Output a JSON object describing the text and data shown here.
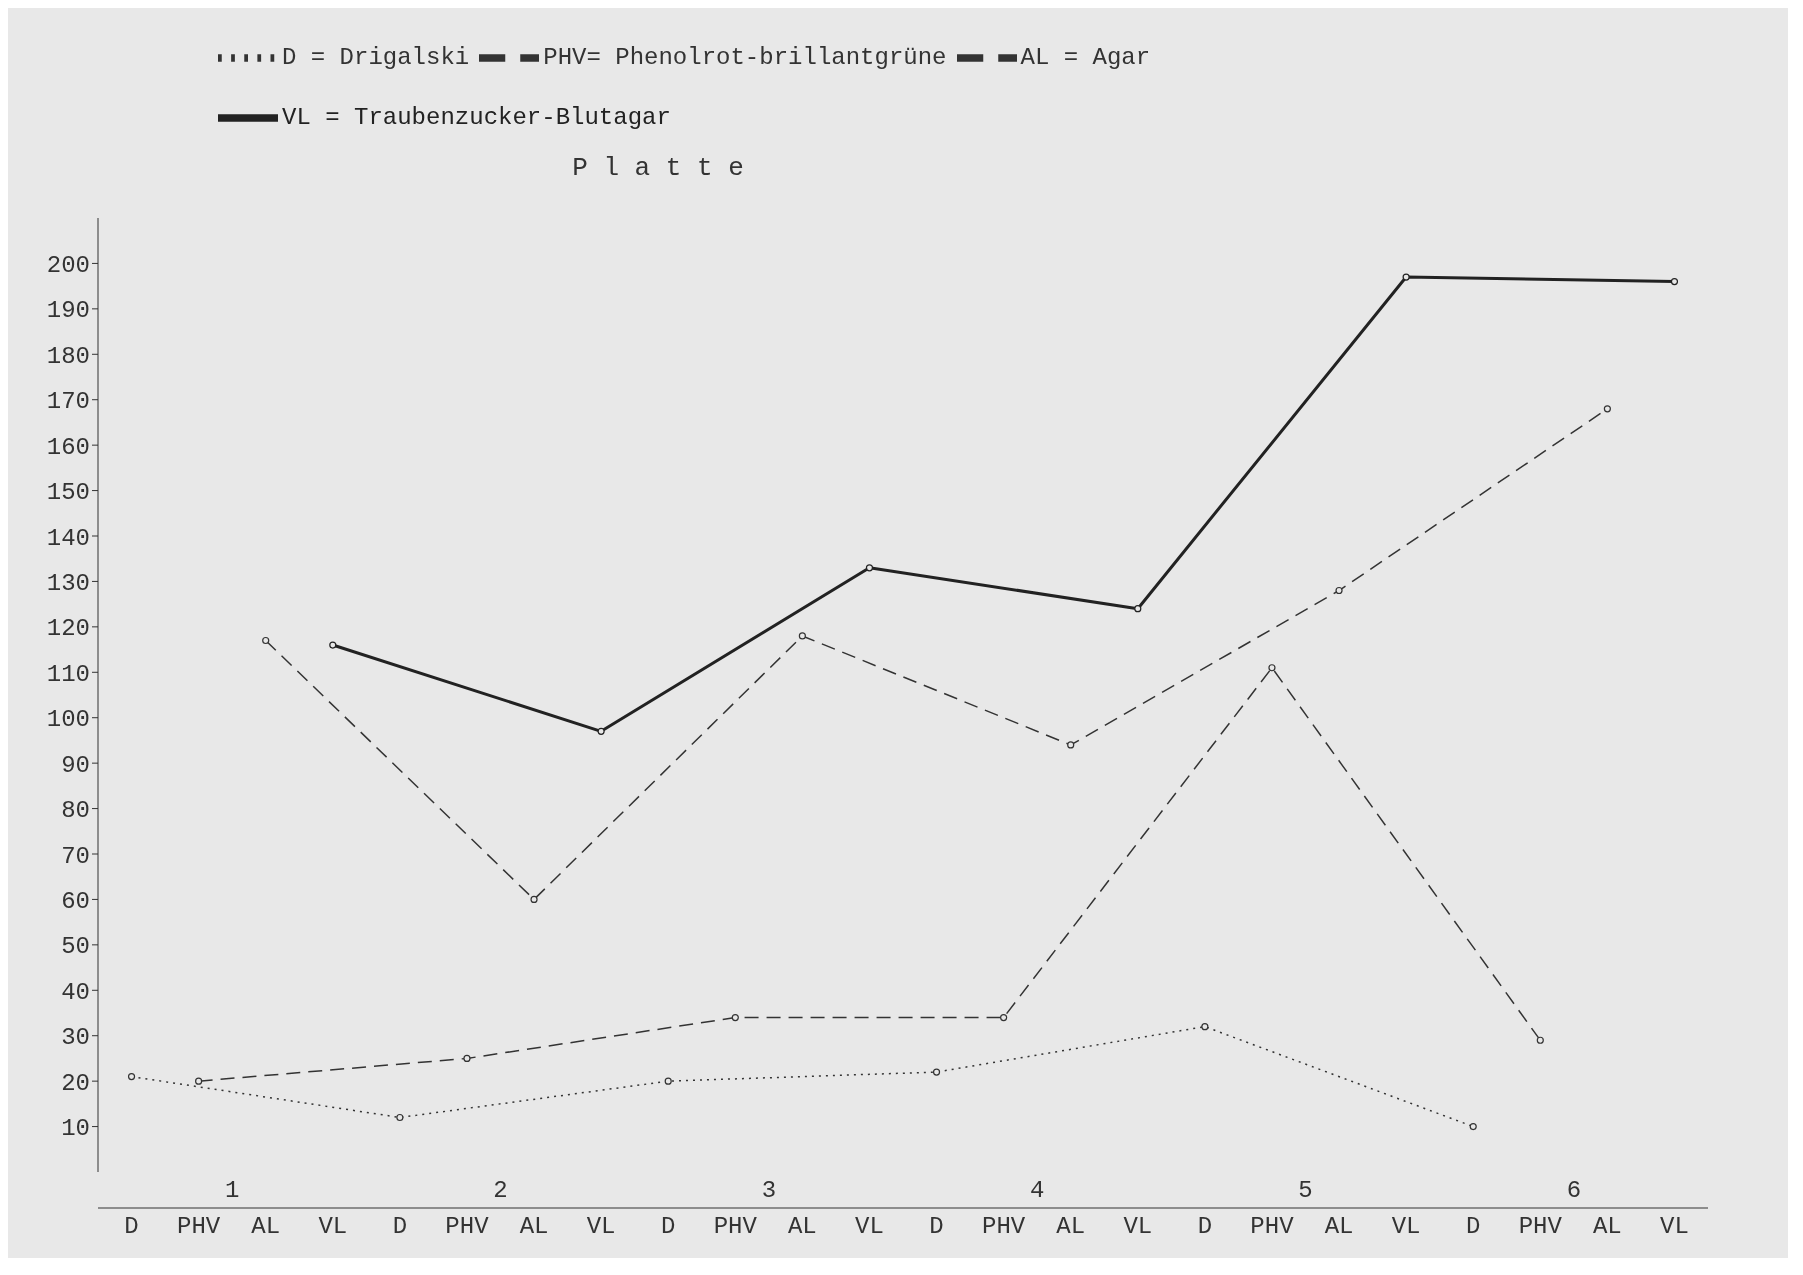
{
  "chart_data": {
    "type": "line",
    "xlabel": "P l a t t e",
    "categories": [
      "D",
      "PHV",
      "AL",
      "VL",
      "D",
      "PHV",
      "AL",
      "VL",
      "D",
      "PHV",
      "AL",
      "VL",
      "D",
      "PHV",
      "AL",
      "VL",
      "D",
      "PHV",
      "AL",
      "VL",
      "D",
      "PHV",
      "AL",
      "VL"
    ],
    "series": [
      {
        "name": "D = Drigalski",
        "color": "#333333",
        "line_style": "dotted",
        "values": [
          21,
          null,
          null,
          null,
          12,
          null,
          null,
          null,
          20,
          null,
          null,
          null,
          22,
          null,
          null,
          null,
          32,
          null,
          null,
          null,
          10,
          null,
          null,
          null
        ]
      },
      {
        "name": "PHV= Phenolrot-brillantgrüne",
        "color": "#333333",
        "line_style": "dashed",
        "values": [
          null,
          20,
          null,
          null,
          null,
          25,
          null,
          null,
          null,
          34,
          null,
          null,
          null,
          34,
          null,
          null,
          null,
          111,
          null,
          null,
          null,
          29,
          null,
          null
        ]
      },
      {
        "name": "AL = Agar",
        "color": "#333333",
        "line_style": "dashed",
        "values": [
          null,
          null,
          117,
          null,
          null,
          null,
          60,
          null,
          null,
          null,
          118,
          null,
          null,
          null,
          94,
          null,
          null,
          null,
          128,
          null,
          null,
          null,
          168,
          null
        ]
      },
      {
        "name": "VL = Traubenzucker-Blutagar",
        "color": "#222222",
        "line_style": "solid",
        "values": [
          null,
          null,
          null,
          116,
          null,
          null,
          null,
          97,
          null,
          null,
          null,
          133,
          null,
          null,
          null,
          124,
          null,
          null,
          null,
          197,
          null,
          null,
          null,
          196
        ]
      }
    ],
    "annotations": [
      "1",
      "2",
      "3",
      "4",
      "5",
      "6"
    ],
    "ylim": [
      0,
      210
    ],
    "yticks": [
      10,
      20,
      30,
      40,
      50,
      60,
      70,
      80,
      90,
      100,
      110,
      120,
      130,
      140,
      150,
      160,
      170,
      180,
      190,
      200
    ],
    "marker": "circle",
    "legend": "top left",
    "grid": false
  }
}
